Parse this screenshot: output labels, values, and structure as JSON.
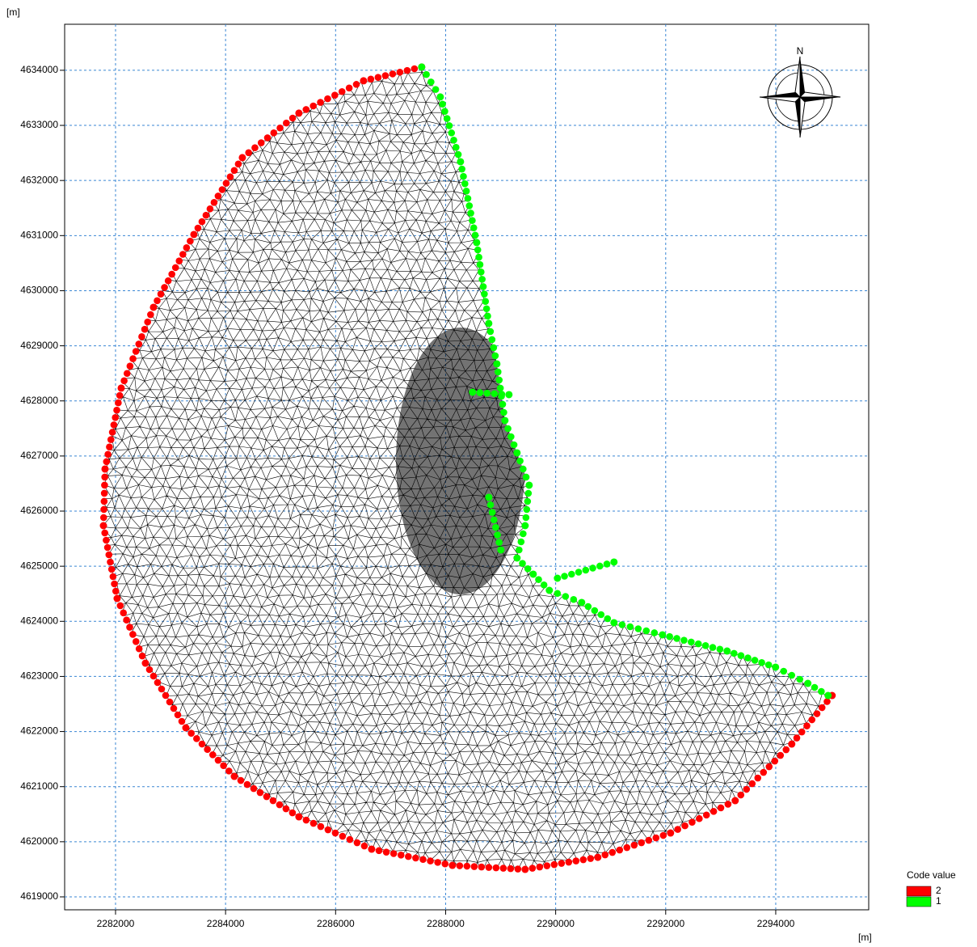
{
  "chart_data": {
    "type": "scatter",
    "y_unit": "[m]",
    "x_unit": "[m]",
    "compass_label": "N",
    "legend_title": "Code value",
    "xlim": [
      2281075,
      2295690
    ],
    "ylim": [
      4618765,
      4634835
    ],
    "xticks": [
      2282000,
      2284000,
      2286000,
      2288000,
      2290000,
      2292000,
      2294000
    ],
    "yticks": [
      4619000,
      4620000,
      4621000,
      4622000,
      4623000,
      4624000,
      4625000,
      4626000,
      4627000,
      4628000,
      4629000,
      4630000,
      4631000,
      4632000,
      4633000,
      4634000
    ],
    "grid": true,
    "series": [
      {
        "name": "2",
        "color": "#ff0000",
        "x": [
          2287565,
          2286508,
          2285333,
          2284305,
          2283424,
          2282690,
          2282103,
          2281809,
          2281780,
          2282029,
          2282543,
          2283278,
          2284159,
          2285333,
          2286655,
          2288123,
          2289445,
          2290766,
          2292088,
          2293263,
          2294291,
          2295025
        ],
        "y": [
          4634059,
          4633809,
          4633222,
          4632415,
          4631020,
          4629699,
          4628232,
          4626764,
          4625736,
          4624415,
          4623241,
          4622067,
          4621186,
          4620452,
          4619865,
          4619572,
          4619498,
          4619718,
          4620159,
          4620746,
          4621773,
          4622654
        ]
      },
      {
        "name": "1",
        "color": "#00ff00",
        "x": [
          2287565,
          2287903,
          2288270,
          2288564,
          2288784,
          2288931,
          2289078,
          2289298,
          2289518,
          2289445,
          2289298,
          2289592,
          2289885,
          2290473,
          2291060,
          2291941,
          2293116,
          2293997,
          2294584,
          2294951,
          null,
          2288490,
          2289151,
          null,
          2288784,
          2289004,
          null,
          2290032,
          2291060
        ],
        "y": [
          4634059,
          4633516,
          4632341,
          4630874,
          4629406,
          4628672,
          4627644,
          4627057,
          4626470,
          4625736,
          4625149,
          4624856,
          4624562,
          4624342,
          4623975,
          4623755,
          4623461,
          4623168,
          4622874,
          4622654,
          null,
          4628158,
          4628114,
          null,
          4626250,
          4625296,
          null,
          4624782,
          4625076
        ]
      }
    ]
  }
}
